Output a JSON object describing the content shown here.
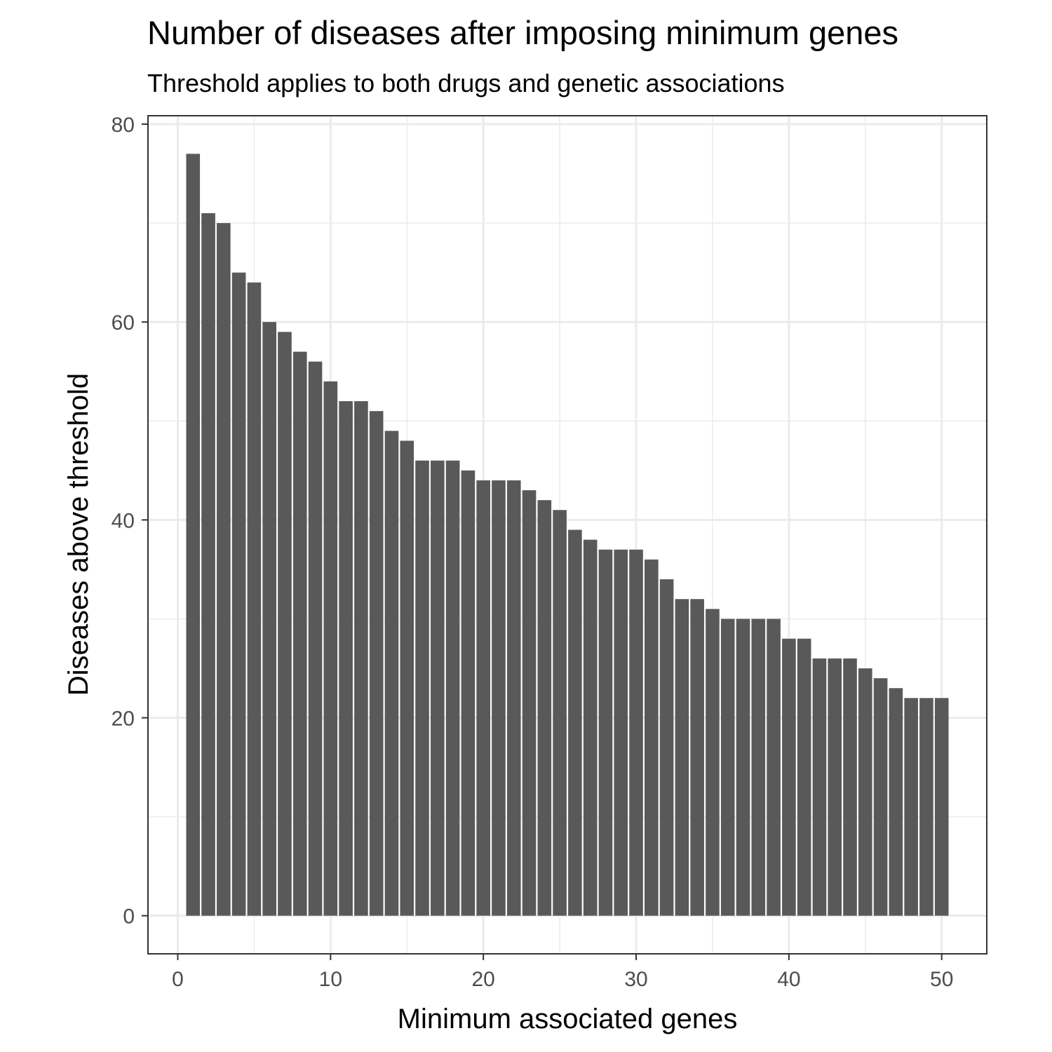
{
  "chart_data": {
    "type": "bar",
    "title": "Number of diseases after imposing minimum genes",
    "subtitle": "Threshold applies to both drugs and genetic associations",
    "xlabel": "Minimum associated genes",
    "ylabel": "Diseases above threshold",
    "x": [
      1,
      2,
      3,
      4,
      5,
      6,
      7,
      8,
      9,
      10,
      11,
      12,
      13,
      14,
      15,
      16,
      17,
      18,
      19,
      20,
      21,
      22,
      23,
      24,
      25,
      26,
      27,
      28,
      29,
      30,
      31,
      32,
      33,
      34,
      35,
      36,
      37,
      38,
      39,
      40,
      41,
      42,
      43,
      44,
      45,
      46,
      47,
      48,
      49,
      50
    ],
    "values": [
      77,
      71,
      70,
      65,
      64,
      60,
      59,
      57,
      56,
      54,
      52,
      52,
      51,
      49,
      48,
      46,
      46,
      46,
      45,
      44,
      44,
      44,
      43,
      42,
      41,
      39,
      38,
      37,
      37,
      37,
      36,
      34,
      32,
      32,
      31,
      30,
      30,
      30,
      30,
      28,
      28,
      26,
      26,
      26,
      25,
      24,
      23,
      22,
      22,
      22
    ],
    "xlim": [
      -1.95,
      52.95
    ],
    "ylim": [
      -3.85,
      80.85
    ],
    "xticks": [
      "0",
      "10",
      "20",
      "30",
      "40",
      "50"
    ],
    "yticks": [
      "0",
      "20",
      "40",
      "60",
      "80"
    ],
    "grid": true,
    "bar_color": "#595959",
    "grid_color": "#ebebeb",
    "panel_border_color": "#333333"
  }
}
